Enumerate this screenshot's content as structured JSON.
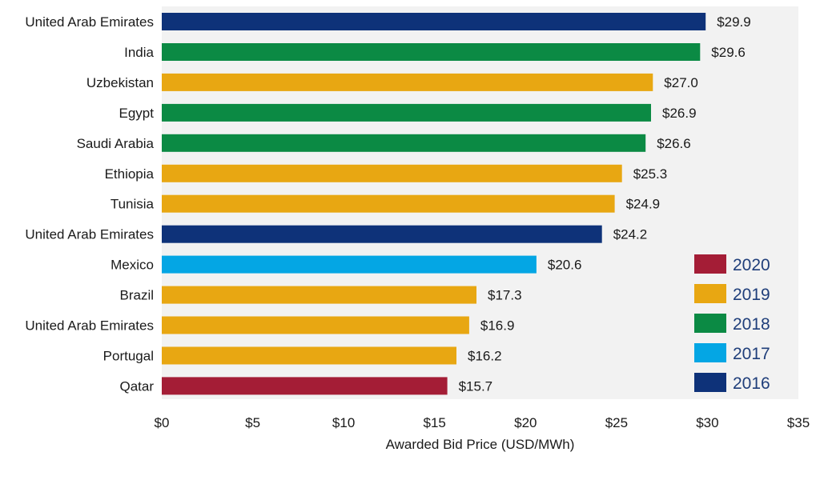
{
  "chart_data": {
    "type": "bar",
    "orientation": "horizontal",
    "title": "",
    "xlabel": "Awarded Bid Price (USD/MWh)",
    "ylabel": "",
    "xlim": [
      0,
      35
    ],
    "xticks": [
      0,
      5,
      10,
      15,
      20,
      25,
      30,
      35
    ],
    "xtick_labels": [
      "$0",
      "$5",
      "$10",
      "$15",
      "$20",
      "$25",
      "$30",
      "$35"
    ],
    "grid": false,
    "legend_position": "bottom-right",
    "bars": [
      {
        "category": "United Arab Emirates",
        "value": 29.9,
        "label": "$29.9",
        "year": "2016"
      },
      {
        "category": "India",
        "value": 29.6,
        "label": "$29.6",
        "year": "2018"
      },
      {
        "category": "Uzbekistan",
        "value": 27.0,
        "label": "$27.0",
        "year": "2019"
      },
      {
        "category": "Egypt",
        "value": 26.9,
        "label": "$26.9",
        "year": "2018"
      },
      {
        "category": "Saudi Arabia",
        "value": 26.6,
        "label": "$26.6",
        "year": "2018"
      },
      {
        "category": "Ethiopia",
        "value": 25.3,
        "label": "$25.3",
        "year": "2019"
      },
      {
        "category": "Tunisia",
        "value": 24.9,
        "label": "$24.9",
        "year": "2019"
      },
      {
        "category": "United Arab Emirates",
        "value": 24.2,
        "label": "$24.2",
        "year": "2016"
      },
      {
        "category": "Mexico",
        "value": 20.6,
        "label": "$20.6",
        "year": "2017"
      },
      {
        "category": "Brazil",
        "value": 17.3,
        "label": "$17.3",
        "year": "2019"
      },
      {
        "category": "United Arab Emirates",
        "value": 16.9,
        "label": "$16.9",
        "year": "2019"
      },
      {
        "category": "Portugal",
        "value": 16.2,
        "label": "$16.2",
        "year": "2019"
      },
      {
        "category": "Qatar",
        "value": 15.7,
        "label": "$15.7",
        "year": "2020"
      }
    ],
    "legend": [
      {
        "label": "2020",
        "color": "#a41d36"
      },
      {
        "label": "2019",
        "color": "#e8a712"
      },
      {
        "label": "2018",
        "color": "#0b8a44"
      },
      {
        "label": "2017",
        "color": "#04a6e4"
      },
      {
        "label": "2016",
        "color": "#0e3279"
      }
    ],
    "colors": {
      "plot_background": "#f2f2f2"
    }
  }
}
